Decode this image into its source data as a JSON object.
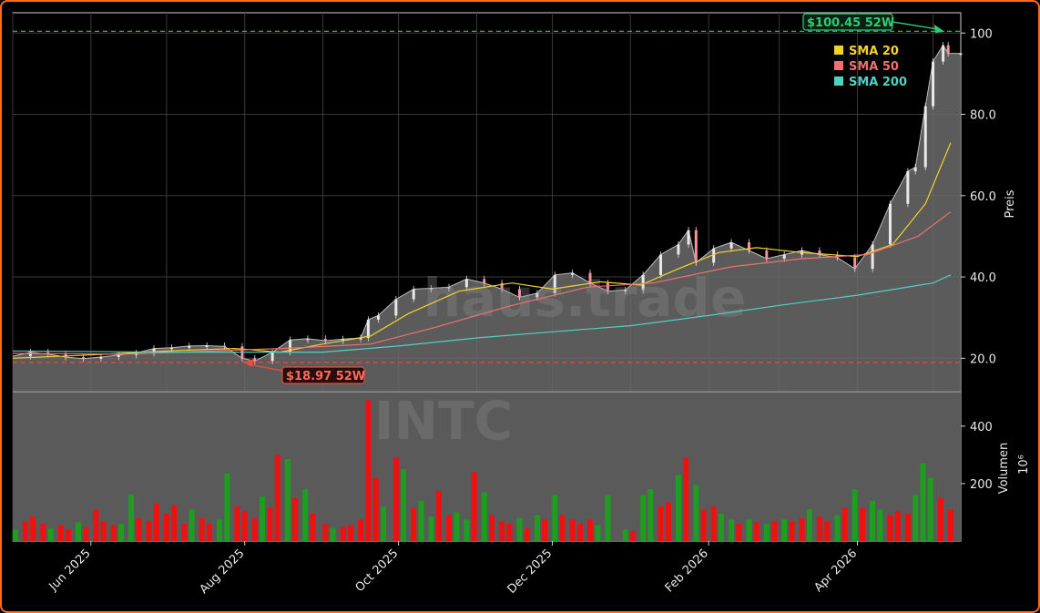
{
  "chart_data": {
    "type": "candlestick",
    "ticker": "INTC",
    "watermark": "haus.trade",
    "x_tick_labels": [
      "Jun 2025",
      "Aug 2025",
      "Oct 2025",
      "Dec 2025",
      "Feb 2026",
      "Apr 2026"
    ],
    "x_range": [
      "2025-05-01",
      "2026-05-12"
    ],
    "price_axis": {
      "label": "Preis",
      "ticks": [
        "20.0",
        "40.0",
        "60.0",
        "80.0",
        "100"
      ],
      "range": [
        12,
        105
      ]
    },
    "volume_axis": {
      "label": "Volumen",
      "unit_label": "10⁶",
      "ticks": [
        "200",
        "400"
      ],
      "range": [
        0,
        520
      ]
    },
    "legend": [
      {
        "name": "SMA 20",
        "color": "#f2d32a"
      },
      {
        "name": "SMA 50",
        "color": "#f07070"
      },
      {
        "name": "SMA 200",
        "color": "#4fd1c5"
      }
    ],
    "annotations": {
      "high": {
        "label": "$100.45 52W",
        "value": 100.45,
        "date": "2026-05-05",
        "color": "#2ecc71"
      },
      "low": {
        "label": "$18.97 52W",
        "value": 18.97,
        "date": "2025-08-01",
        "color": "#e74c3c"
      }
    },
    "close_series": [
      [
        "2025-05-01",
        20.5
      ],
      [
        "2025-05-08",
        21.5
      ],
      [
        "2025-05-15",
        21.0
      ],
      [
        "2025-05-22",
        20.3
      ],
      [
        "2025-05-29",
        19.9
      ],
      [
        "2025-06-05",
        20.3
      ],
      [
        "2025-06-12",
        20.8
      ],
      [
        "2025-06-19",
        21.3
      ],
      [
        "2025-06-26",
        22.4
      ],
      [
        "2025-07-03",
        22.6
      ],
      [
        "2025-07-10",
        23.0
      ],
      [
        "2025-07-17",
        23.1
      ],
      [
        "2025-07-24",
        22.9
      ],
      [
        "2025-07-31",
        20.0
      ],
      [
        "2025-08-05",
        19.3
      ],
      [
        "2025-08-12",
        21.5
      ],
      [
        "2025-08-19",
        24.5
      ],
      [
        "2025-08-26",
        24.8
      ],
      [
        "2025-09-02",
        24.3
      ],
      [
        "2025-09-09",
        24.7
      ],
      [
        "2025-09-16",
        25.0
      ],
      [
        "2025-09-19",
        29.5
      ],
      [
        "2025-09-23",
        30.5
      ],
      [
        "2025-09-30",
        34.5
      ],
      [
        "2025-10-07",
        37.0
      ],
      [
        "2025-10-14",
        37.2
      ],
      [
        "2025-10-21",
        37.5
      ],
      [
        "2025-10-28",
        39.5
      ],
      [
        "2025-11-04",
        38.5
      ],
      [
        "2025-11-11",
        37.0
      ],
      [
        "2025-11-18",
        35.0
      ],
      [
        "2025-11-25",
        36.0
      ],
      [
        "2025-12-02",
        40.5
      ],
      [
        "2025-12-09",
        41.0
      ],
      [
        "2025-12-16",
        38.5
      ],
      [
        "2025-12-23",
        36.5
      ],
      [
        "2025-12-30",
        36.8
      ],
      [
        "2026-01-06",
        40.5
      ],
      [
        "2026-01-13",
        45.5
      ],
      [
        "2026-01-20",
        48.0
      ],
      [
        "2026-01-24",
        51.5
      ],
      [
        "2026-01-27",
        43.5
      ],
      [
        "2026-02-03",
        47.0
      ],
      [
        "2026-02-10",
        48.5
      ],
      [
        "2026-02-17",
        46.5
      ],
      [
        "2026-02-24",
        44.5
      ],
      [
        "2026-03-03",
        45.5
      ],
      [
        "2026-03-10",
        46.5
      ],
      [
        "2026-03-17",
        45.5
      ],
      [
        "2026-03-24",
        44.8
      ],
      [
        "2026-03-31",
        42.0
      ],
      [
        "2026-04-07",
        48.0
      ],
      [
        "2026-04-14",
        58.0
      ],
      [
        "2026-04-21",
        66.0
      ],
      [
        "2026-04-24",
        67.0
      ],
      [
        "2026-04-28",
        82.0
      ],
      [
        "2026-05-01",
        93.0
      ],
      [
        "2026-05-05",
        97.0
      ],
      [
        "2026-05-07",
        95.0
      ],
      [
        "2026-05-12",
        95.0
      ]
    ],
    "sma20": [
      [
        "2025-05-01",
        20.0
      ],
      [
        "2025-06-01",
        20.8
      ],
      [
        "2025-07-01",
        21.8
      ],
      [
        "2025-07-28",
        22.4
      ],
      [
        "2025-08-15",
        21.5
      ],
      [
        "2025-09-01",
        23.5
      ],
      [
        "2025-09-20",
        25.5
      ],
      [
        "2025-10-05",
        31.0
      ],
      [
        "2025-10-25",
        36.5
      ],
      [
        "2025-11-15",
        38.5
      ],
      [
        "2025-12-01",
        37.0
      ],
      [
        "2025-12-20",
        38.8
      ],
      [
        "2026-01-05",
        38.0
      ],
      [
        "2026-01-20",
        42.0
      ],
      [
        "2026-02-05",
        46.0
      ],
      [
        "2026-02-20",
        47.2
      ],
      [
        "2026-03-10",
        46.0
      ],
      [
        "2026-04-01",
        45.0
      ],
      [
        "2026-04-15",
        48.0
      ],
      [
        "2026-04-28",
        58.0
      ],
      [
        "2026-05-08",
        73.0
      ]
    ],
    "sma50": [
      [
        "2025-05-01",
        21.2
      ],
      [
        "2025-06-15",
        21.0
      ],
      [
        "2025-07-20",
        21.8
      ],
      [
        "2025-08-20",
        22.5
      ],
      [
        "2025-09-20",
        23.5
      ],
      [
        "2025-10-15",
        27.5
      ],
      [
        "2025-11-15",
        33.0
      ],
      [
        "2025-12-15",
        37.5
      ],
      [
        "2026-01-10",
        38.5
      ],
      [
        "2026-02-10",
        42.5
      ],
      [
        "2026-03-10",
        44.5
      ],
      [
        "2026-04-05",
        45.5
      ],
      [
        "2026-04-25",
        50.0
      ],
      [
        "2026-05-08",
        56.0
      ]
    ],
    "sma200": [
      [
        "2025-05-01",
        21.8
      ],
      [
        "2025-07-01",
        21.5
      ],
      [
        "2025-09-01",
        21.5
      ],
      [
        "2025-10-01",
        23.0
      ],
      [
        "2025-11-01",
        25.0
      ],
      [
        "2025-12-01",
        26.5
      ],
      [
        "2026-01-01",
        28.0
      ],
      [
        "2026-02-01",
        30.5
      ],
      [
        "2026-03-01",
        33.0
      ],
      [
        "2026-04-01",
        35.5
      ],
      [
        "2026-05-01",
        38.5
      ],
      [
        "2026-05-08",
        40.5
      ]
    ],
    "volume_bars": [
      [
        "2025-05-02",
        40,
        "green"
      ],
      [
        "2025-05-06",
        70,
        "red"
      ],
      [
        "2025-05-09",
        85,
        "red"
      ],
      [
        "2025-05-13",
        60,
        "red"
      ],
      [
        "2025-05-16",
        45,
        "green"
      ],
      [
        "2025-05-20",
        55,
        "red"
      ],
      [
        "2025-05-23",
        40,
        "red"
      ],
      [
        "2025-05-27",
        65,
        "green"
      ],
      [
        "2025-05-30",
        50,
        "red"
      ],
      [
        "2025-06-03",
        110,
        "red"
      ],
      [
        "2025-06-06",
        70,
        "red"
      ],
      [
        "2025-06-10",
        55,
        "red"
      ],
      [
        "2025-06-13",
        60,
        "green"
      ],
      [
        "2025-06-17",
        160,
        "green"
      ],
      [
        "2025-06-20",
        80,
        "red"
      ],
      [
        "2025-06-24",
        70,
        "red"
      ],
      [
        "2025-06-27",
        130,
        "red"
      ],
      [
        "2025-07-01",
        95,
        "red"
      ],
      [
        "2025-07-04",
        125,
        "red"
      ],
      [
        "2025-07-08",
        60,
        "red"
      ],
      [
        "2025-07-11",
        110,
        "green"
      ],
      [
        "2025-07-15",
        80,
        "red"
      ],
      [
        "2025-07-18",
        60,
        "red"
      ],
      [
        "2025-07-22",
        75,
        "green"
      ],
      [
        "2025-07-25",
        235,
        "green"
      ],
      [
        "2025-07-29",
        120,
        "red"
      ],
      [
        "2025-08-01",
        105,
        "red"
      ],
      [
        "2025-08-05",
        80,
        "red"
      ],
      [
        "2025-08-08",
        155,
        "green"
      ],
      [
        "2025-08-11",
        115,
        "red"
      ],
      [
        "2025-08-14",
        300,
        "red"
      ],
      [
        "2025-08-18",
        285,
        "green"
      ],
      [
        "2025-08-21",
        150,
        "red"
      ],
      [
        "2025-08-25",
        180,
        "green"
      ],
      [
        "2025-08-28",
        95,
        "red"
      ],
      [
        "2025-09-02",
        60,
        "red"
      ],
      [
        "2025-09-05",
        45,
        "green"
      ],
      [
        "2025-09-09",
        50,
        "red"
      ],
      [
        "2025-09-12",
        55,
        "red"
      ],
      [
        "2025-09-16",
        75,
        "red"
      ],
      [
        "2025-09-19",
        490,
        "red"
      ],
      [
        "2025-09-22",
        220,
        "red"
      ],
      [
        "2025-09-25",
        120,
        "green"
      ],
      [
        "2025-09-30",
        290,
        "red"
      ],
      [
        "2025-10-03",
        250,
        "green"
      ],
      [
        "2025-10-07",
        115,
        "red"
      ],
      [
        "2025-10-10",
        140,
        "green"
      ],
      [
        "2025-10-14",
        85,
        "green"
      ],
      [
        "2025-10-17",
        175,
        "red"
      ],
      [
        "2025-10-21",
        90,
        "red"
      ],
      [
        "2025-10-24",
        100,
        "green"
      ],
      [
        "2025-10-28",
        75,
        "green"
      ],
      [
        "2025-10-31",
        240,
        "red"
      ],
      [
        "2025-11-04",
        170,
        "green"
      ],
      [
        "2025-11-07",
        90,
        "red"
      ],
      [
        "2025-11-11",
        70,
        "red"
      ],
      [
        "2025-11-14",
        60,
        "red"
      ],
      [
        "2025-11-18",
        80,
        "green"
      ],
      [
        "2025-11-21",
        45,
        "red"
      ],
      [
        "2025-11-25",
        90,
        "green"
      ],
      [
        "2025-11-28",
        75,
        "red"
      ],
      [
        "2025-12-02",
        160,
        "green"
      ],
      [
        "2025-12-05",
        90,
        "red"
      ],
      [
        "2025-12-09",
        75,
        "red"
      ],
      [
        "2025-12-12",
        60,
        "red"
      ],
      [
        "2025-12-16",
        75,
        "red"
      ],
      [
        "2025-12-19",
        55,
        "green"
      ],
      [
        "2025-12-23",
        160,
        "green"
      ],
      [
        "2025-12-30",
        40,
        "green"
      ],
      [
        "2026-01-02",
        35,
        "red"
      ],
      [
        "2026-01-06",
        160,
        "green"
      ],
      [
        "2026-01-09",
        180,
        "green"
      ],
      [
        "2026-01-13",
        120,
        "red"
      ],
      [
        "2026-01-16",
        135,
        "red"
      ],
      [
        "2026-01-20",
        230,
        "green"
      ],
      [
        "2026-01-23",
        290,
        "red"
      ],
      [
        "2026-01-27",
        195,
        "green"
      ],
      [
        "2026-01-30",
        110,
        "red"
      ],
      [
        "2026-02-03",
        120,
        "red"
      ],
      [
        "2026-02-06",
        95,
        "green"
      ],
      [
        "2026-02-10",
        75,
        "green"
      ],
      [
        "2026-02-13",
        60,
        "red"
      ],
      [
        "2026-02-17",
        75,
        "green"
      ],
      [
        "2026-02-20",
        65,
        "red"
      ],
      [
        "2026-02-24",
        60,
        "green"
      ],
      [
        "2026-02-27",
        70,
        "red"
      ],
      [
        "2026-03-03",
        75,
        "green"
      ],
      [
        "2026-03-06",
        70,
        "red"
      ],
      [
        "2026-03-10",
        80,
        "red"
      ],
      [
        "2026-03-13",
        110,
        "green"
      ],
      [
        "2026-03-17",
        85,
        "red"
      ],
      [
        "2026-03-20",
        70,
        "red"
      ],
      [
        "2026-03-24",
        90,
        "green"
      ],
      [
        "2026-03-27",
        115,
        "red"
      ],
      [
        "2026-03-31",
        180,
        "green"
      ],
      [
        "2026-04-03",
        115,
        "red"
      ],
      [
        "2026-04-07",
        140,
        "green"
      ],
      [
        "2026-04-10",
        110,
        "green"
      ],
      [
        "2026-04-14",
        90,
        "red"
      ],
      [
        "2026-04-17",
        105,
        "red"
      ],
      [
        "2026-04-21",
        95,
        "red"
      ],
      [
        "2026-04-24",
        160,
        "green"
      ],
      [
        "2026-04-27",
        270,
        "green"
      ],
      [
        "2026-04-30",
        220,
        "green"
      ],
      [
        "2026-05-04",
        150,
        "red"
      ],
      [
        "2026-05-08",
        110,
        "red"
      ]
    ]
  }
}
